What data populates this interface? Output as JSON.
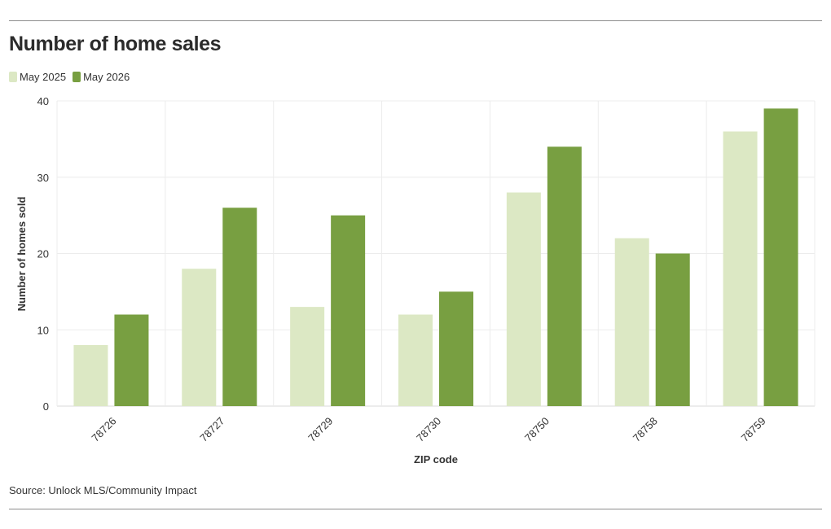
{
  "title": "Number of home sales",
  "source": "Source: Unlock MLS/Community Impact",
  "legend": [
    {
      "label": "May 2025",
      "color": "#dce8c4"
    },
    {
      "label": "May 2026",
      "color": "#789f41"
    }
  ],
  "chart_data": {
    "type": "bar",
    "title": "Number of home sales",
    "xlabel": "ZIP code",
    "ylabel": "Number of homes sold",
    "categories": [
      "78726",
      "78727",
      "78729",
      "78730",
      "78750",
      "78758",
      "78759"
    ],
    "series": [
      {
        "name": "May 2025",
        "color": "#dce8c4",
        "values": [
          8,
          18,
          13,
          12,
          28,
          22,
          36
        ]
      },
      {
        "name": "May 2026",
        "color": "#789f41",
        "values": [
          12,
          26,
          25,
          15,
          34,
          20,
          39
        ]
      }
    ],
    "ylim": [
      0,
      40
    ],
    "yticks": [
      0,
      10,
      20,
      30,
      40
    ],
    "grid": true,
    "legend_position": "top-left"
  }
}
